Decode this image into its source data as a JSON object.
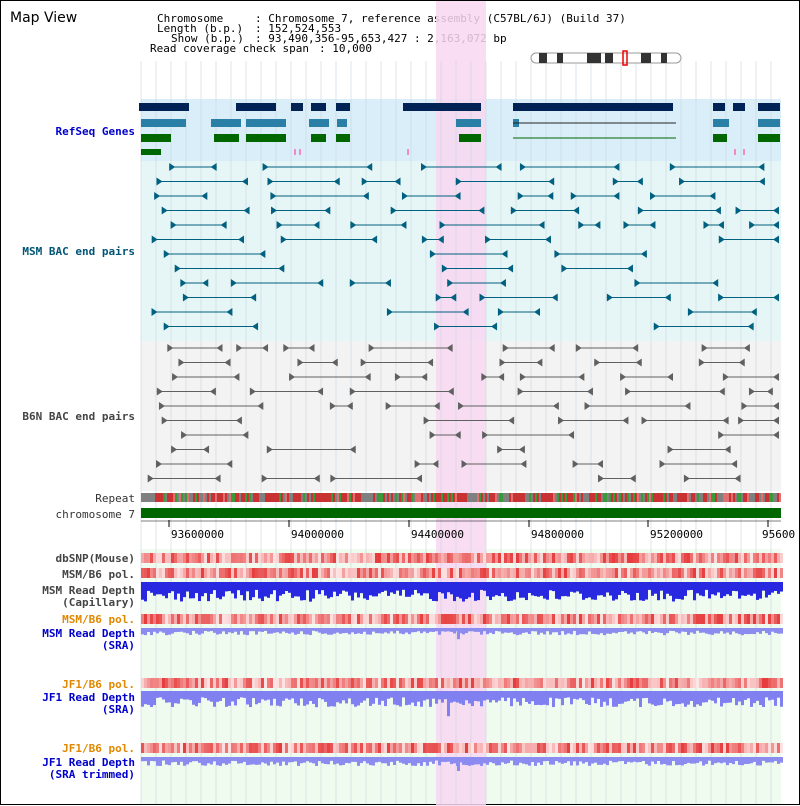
{
  "view": {
    "title": "Map View",
    "chromosome_label": "Chromosome",
    "chromosome_value": ": Chromosome 7, reference assembly (C57BL/6J) (Build 37)",
    "length_label": "Length (b.p.)",
    "length_value": ": 152,524,553",
    "show_label": "Show (b.p.)",
    "show_value": ": 93,490,356-95,653,427 : 2,163,072 bp",
    "coverage_label": "Read coverage check span",
    "coverage_value": ": 10,000"
  },
  "tracks": {
    "refseq": "RefSeq Genes",
    "msm_bac": "MSM BAC end pairs",
    "b6n_bac": "B6N BAC end pairs",
    "repeat": "Repeat",
    "chromosome": "chromosome 7",
    "dbsnp": "dbSNP(Mouse)",
    "msm_b6_pol_1": "MSM/B6 pol.",
    "msm_read_cap": "MSM Read Depth\n(Capillary)",
    "msm_b6_pol_2": "MSM/B6 pol.",
    "msm_read_sra": "MSM Read Depth\n(SRA)",
    "jf1_b6_pol_1": "JF1/B6 pol.",
    "jf1_read_sra": "JF1 Read Depth\n(SRA)",
    "jf1_b6_pol_2": "JF1/B6 pol.",
    "jf1_read_trim": "JF1 Read Depth\n(SRA trimmed)"
  },
  "axis": {
    "ticks": [
      "93600000",
      "94000000",
      "94400000",
      "94800000",
      "95200000",
      "95600"
    ]
  },
  "colors": {
    "highlight": "#f7d7f1",
    "refseq_bg": "#d9eef9",
    "msm_bg": "#e6f6f6",
    "b6n_bg": "#f3f3f3",
    "chrom": "#006600",
    "navy": "#002255",
    "teal": "#2a7fa6",
    "green": "#006600",
    "msm": "#00607f",
    "b6n": "#606060"
  }
}
